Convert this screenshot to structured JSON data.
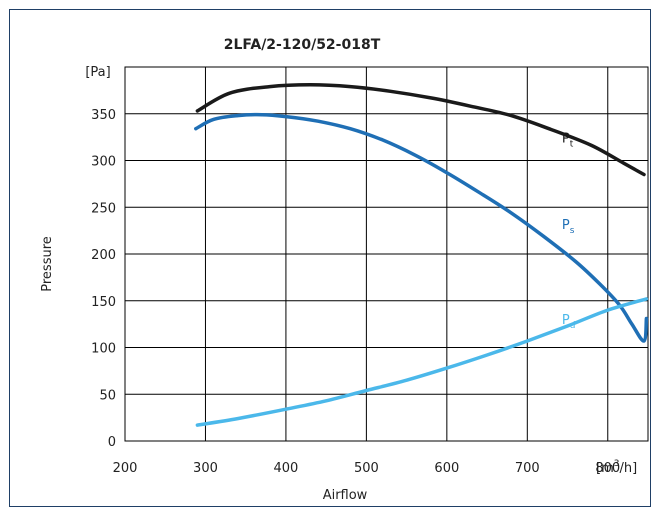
{
  "chart_data": {
    "type": "line",
    "title": "2LFA/2-120/52-018T",
    "xlabel": "Airflow",
    "ylabel": "Pressure",
    "x_unit": {
      "base": "[m",
      "sup": "3",
      "tail": "/h]"
    },
    "y_unit": "[Pa]",
    "xlim": [
      200,
      850
    ],
    "ylim": [
      0,
      400
    ],
    "x_ticks": [
      200,
      300,
      400,
      500,
      600,
      700,
      800
    ],
    "y_ticks": [
      0,
      50,
      100,
      150,
      200,
      250,
      300,
      350
    ],
    "grid": true,
    "series": [
      {
        "name": "Pt",
        "label_main": "P",
        "label_sub": "t",
        "color": "#1a1a1a",
        "label_at": [
          743,
          319
        ],
        "points": [
          [
            290,
            353
          ],
          [
            330,
            372
          ],
          [
            380,
            379
          ],
          [
            430,
            381
          ],
          [
            480,
            379
          ],
          [
            530,
            374
          ],
          [
            580,
            367
          ],
          [
            630,
            358
          ],
          [
            680,
            348
          ],
          [
            730,
            333
          ],
          [
            780,
            316
          ],
          [
            820,
            297
          ],
          [
            845,
            285
          ]
        ]
      },
      {
        "name": "Ps",
        "label_main": "P",
        "label_sub": "s",
        "color": "#1f6fb5",
        "label_at": [
          743,
          227
        ],
        "points": [
          [
            288,
            334
          ],
          [
            310,
            344
          ],
          [
            340,
            348
          ],
          [
            370,
            349
          ],
          [
            400,
            347
          ],
          [
            440,
            342
          ],
          [
            480,
            334
          ],
          [
            520,
            322
          ],
          [
            560,
            306
          ],
          [
            600,
            287
          ],
          [
            640,
            266
          ],
          [
            680,
            244
          ],
          [
            720,
            219
          ],
          [
            760,
            192
          ],
          [
            790,
            168
          ],
          [
            815,
            145
          ],
          [
            830,
            125
          ],
          [
            845,
            107
          ],
          [
            848,
            131
          ]
        ]
      },
      {
        "name": "Pd",
        "label_main": "P",
        "label_sub": "d",
        "color": "#4bb8ea",
        "label_at": [
          743,
          125
        ],
        "points": [
          [
            290,
            17
          ],
          [
            340,
            24
          ],
          [
            400,
            34
          ],
          [
            450,
            43
          ],
          [
            500,
            54
          ],
          [
            550,
            65
          ],
          [
            600,
            78
          ],
          [
            650,
            92
          ],
          [
            700,
            107
          ],
          [
            750,
            123
          ],
          [
            800,
            140
          ],
          [
            848,
            152
          ]
        ]
      }
    ]
  }
}
